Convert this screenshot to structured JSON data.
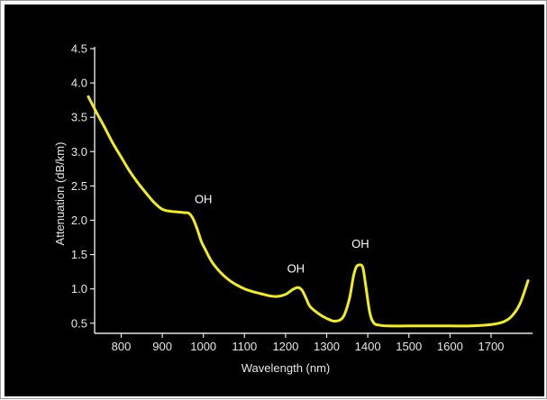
{
  "colors": {
    "plot_background": "#000000",
    "frame_border": "#9a9a9a",
    "axis": "#e6e6e6",
    "curve": "#f2ec1a",
    "text": "#e6e6e6"
  },
  "chart_data": {
    "type": "line",
    "title": "",
    "xlabel": "Wavelength (nm)",
    "ylabel": "Attenuation (dB/km)",
    "xlim": [
      720,
      1790
    ],
    "ylim": [
      0.3,
      4.5
    ],
    "x_ticks": [
      800,
      900,
      1000,
      1100,
      1200,
      1300,
      1400,
      1500,
      1600,
      1700
    ],
    "y_ticks": [
      0.5,
      1.0,
      1.5,
      2.0,
      2.5,
      3.0,
      3.5,
      4.0,
      4.5
    ],
    "x_tick_labels": [
      "800",
      "900",
      "1000",
      "1100",
      "1200",
      "1300",
      "1400",
      "1500",
      "1600",
      "1700"
    ],
    "y_tick_labels": [
      "0.5",
      "1.0",
      "1.5",
      "2.0",
      "2.5",
      "3.0",
      "3.5",
      "4.0",
      "4.5"
    ],
    "grid": false,
    "series": [
      {
        "x": [
          720,
          740,
          760,
          780,
          800,
          820,
          840,
          860,
          880,
          900,
          920,
          940,
          955,
          965,
          975,
          985,
          995,
          1005,
          1020,
          1040,
          1060,
          1080,
          1100,
          1120,
          1140,
          1160,
          1180,
          1200,
          1210,
          1220,
          1230,
          1240,
          1250,
          1260,
          1280,
          1300,
          1320,
          1340,
          1355,
          1365,
          1372,
          1380,
          1388,
          1395,
          1405,
          1415,
          1430,
          1450,
          1500,
          1550,
          1600,
          1650,
          1700,
          1730,
          1750,
          1770,
          1790
        ],
        "y": [
          3.8,
          3.57,
          3.35,
          3.12,
          2.92,
          2.72,
          2.55,
          2.4,
          2.26,
          2.16,
          2.13,
          2.12,
          2.11,
          2.1,
          2.02,
          1.87,
          1.69,
          1.57,
          1.4,
          1.25,
          1.14,
          1.06,
          1.0,
          0.96,
          0.93,
          0.9,
          0.89,
          0.92,
          0.96,
          1.0,
          1.02,
          0.98,
          0.86,
          0.74,
          0.64,
          0.57,
          0.53,
          0.59,
          0.85,
          1.18,
          1.32,
          1.35,
          1.31,
          1.05,
          0.65,
          0.5,
          0.47,
          0.46,
          0.46,
          0.46,
          0.46,
          0.46,
          0.48,
          0.52,
          0.6,
          0.78,
          1.12
        ]
      }
    ],
    "annotations": [
      {
        "text": "OH",
        "x": 1000,
        "y": 2.25
      },
      {
        "text": "OH",
        "x": 1225,
        "y": 1.24
      },
      {
        "text": "OH",
        "x": 1382,
        "y": 1.6
      }
    ]
  }
}
